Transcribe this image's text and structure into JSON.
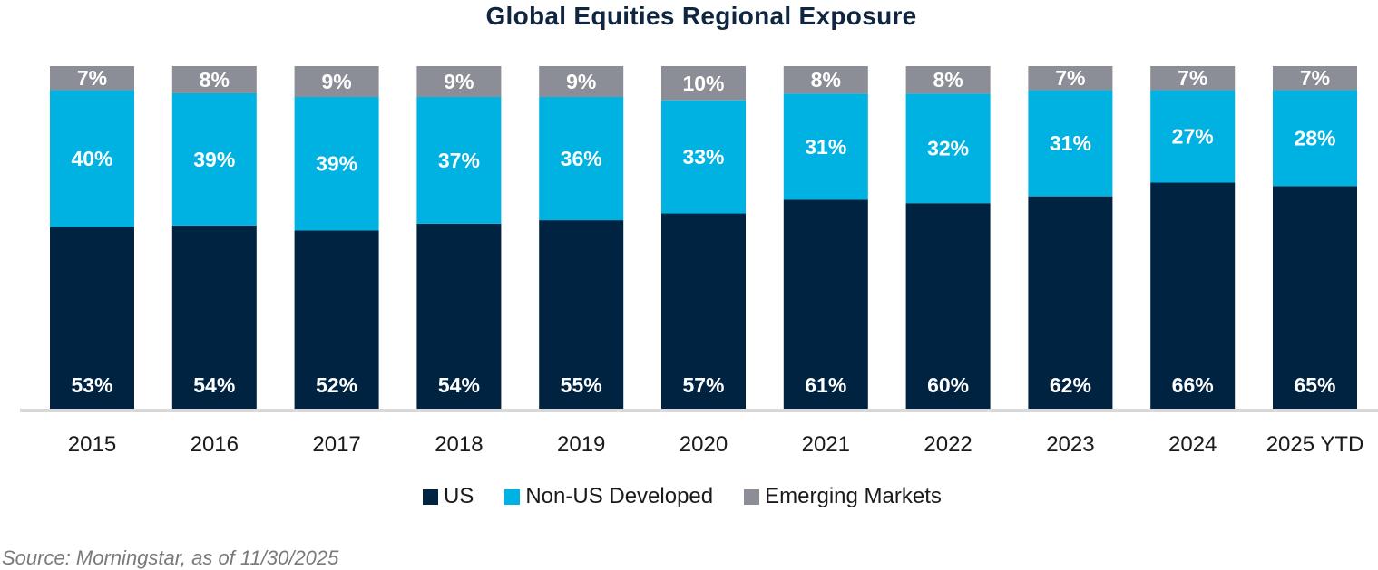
{
  "chart_data": {
    "type": "bar",
    "stacked": true,
    "normalized": true,
    "title": "Global Equities Regional Exposure",
    "xlabel": "",
    "ylabel": "",
    "ylim": [
      0,
      100
    ],
    "grid": false,
    "legend_position": "bottom-center",
    "categories": [
      "2015",
      "2016",
      "2017",
      "2018",
      "2019",
      "2020",
      "2021",
      "2022",
      "2023",
      "2024",
      "2025 YTD"
    ],
    "series": [
      {
        "name": "US",
        "color": "#002342",
        "values": [
          53,
          54,
          52,
          54,
          55,
          57,
          61,
          60,
          62,
          66,
          65
        ]
      },
      {
        "name": "Non-US Developed",
        "color": "#00b2e2",
        "values": [
          40,
          39,
          39,
          37,
          36,
          33,
          31,
          32,
          31,
          27,
          28
        ]
      },
      {
        "name": "Emerging Markets",
        "color": "#8b8e96",
        "values": [
          7,
          8,
          9,
          9,
          9,
          10,
          8,
          8,
          7,
          7,
          7
        ]
      }
    ],
    "value_suffix": "%",
    "source": "Source: Morningstar, as of 11/30/2025"
  }
}
